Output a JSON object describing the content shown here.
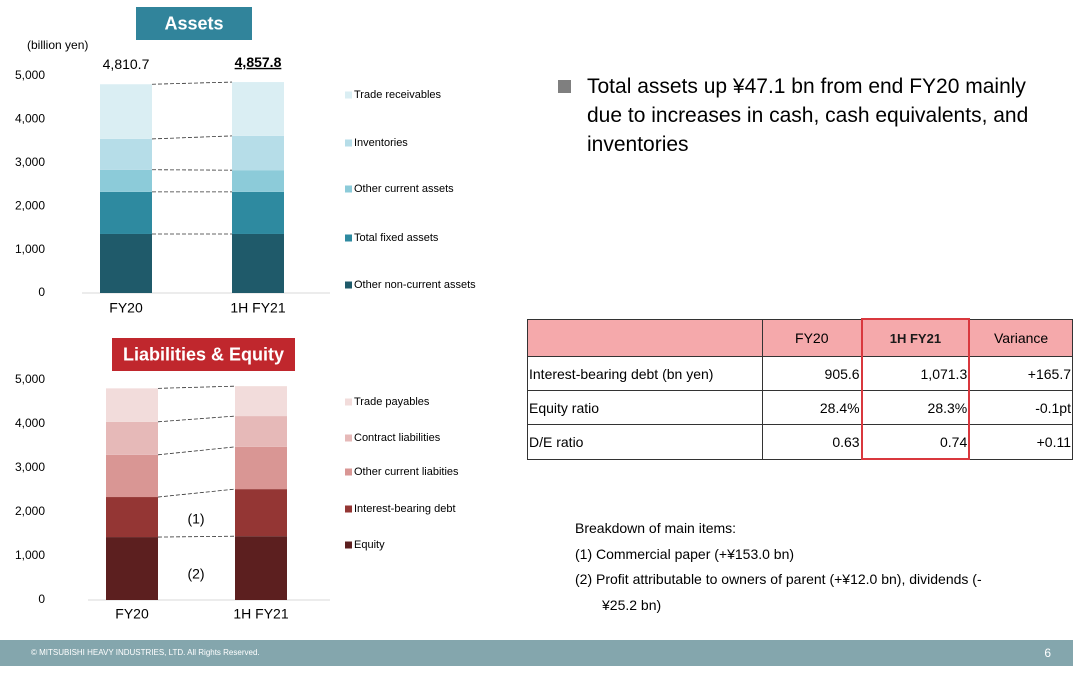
{
  "chart_data": [
    {
      "type": "bar",
      "stacked": true,
      "title": "Assets",
      "unit_label": "(billion yen)",
      "categories": [
        "FY20",
        "1H FY21"
      ],
      "series": [
        {
          "name": "Other non-current assets",
          "color": "#1f5a6a",
          "values": [
            1360,
            1360
          ]
        },
        {
          "name": "Total fixed assets",
          "color": "#2e8aa0",
          "values": [
            970,
            970
          ]
        },
        {
          "name": "Other current assets",
          "color": "#8ccbd9",
          "values": [
            510,
            500
          ]
        },
        {
          "name": "Inventories",
          "color": "#b6dde8",
          "values": [
            710,
            790
          ]
        },
        {
          "name": "Trade receivables",
          "color": "#daeef3",
          "values": [
            1260,
            1240
          ]
        }
      ],
      "totals": {
        "values": [
          4810.7,
          4857.8
        ],
        "value_labels": [
          "4,810.7",
          "4,857.8"
        ]
      },
      "ylim": [
        0,
        5000
      ],
      "yticks": [
        0,
        {
          "value": 1000,
          "label": "1,000"
        },
        {
          "value": 2000,
          "label": "2,000"
        },
        {
          "value": 3000,
          "label": "3,000"
        },
        {
          "value": 4000,
          "label": "4,000"
        },
        {
          "value": 5000,
          "label": "5,000"
        }
      ],
      "grid": false,
      "legend": "right"
    },
    {
      "type": "bar",
      "stacked": true,
      "title": "Liabilities & Equity",
      "categories": [
        "FY20",
        "1H FY21"
      ],
      "series": [
        {
          "name": "Equity",
          "color": "#5c1f1f",
          "values": [
            1430,
            1450
          ]
        },
        {
          "name": "Interest-bearing debt",
          "color": "#943634",
          "values": [
            910,
            1070
          ]
        },
        {
          "name": "Other current liabities",
          "color": "#d99694",
          "values": [
            960,
            960
          ]
        },
        {
          "name": "Contract liabilities",
          "color": "#e6b9b8",
          "values": [
            750,
            700
          ]
        },
        {
          "name": "Trade payables",
          "color": "#f2dcdb",
          "values": [
            760,
            680
          ]
        }
      ],
      "annotations": [
        "(1)",
        "(2)"
      ],
      "ylim": [
        0,
        5000
      ],
      "yticks": [
        0,
        {
          "value": 1000,
          "label": "1,000"
        },
        {
          "value": 2000,
          "label": "2,000"
        },
        {
          "value": 3000,
          "label": "3,000"
        },
        {
          "value": 4000,
          "label": "4,000"
        },
        {
          "value": 5000,
          "label": "5,000"
        }
      ],
      "grid": false,
      "legend": "right"
    }
  ],
  "summary": {
    "bullet": "Total assets up ¥47.1 bn from end FY20 mainly due to increases in cash, cash equivalents, and inventories"
  },
  "table": {
    "header": [
      "FY20",
      "1H FY21",
      "Variance"
    ],
    "rows": [
      [
        "Interest-bearing debt (bn yen)",
        "905.6",
        "1,071.3",
        "+165.7"
      ],
      [
        "Equity ratio",
        "28.4%",
        "28.3%",
        "-0.1pt"
      ],
      [
        "D/E ratio",
        "0.63",
        "0.74",
        "+0.11"
      ]
    ]
  },
  "breakdown": {
    "title": "Breakdown of main items:",
    "items": [
      "(1) Commercial paper (+¥153.0 bn)",
      "(2) Profit attributable to owners of parent (+¥12.0 bn), dividends (-¥25.2 bn)"
    ]
  },
  "footer": {
    "copyright": "© MITSUBISHI HEAVY INDUSTRIES, LTD.  All Rights Reserved.",
    "page": "6"
  }
}
